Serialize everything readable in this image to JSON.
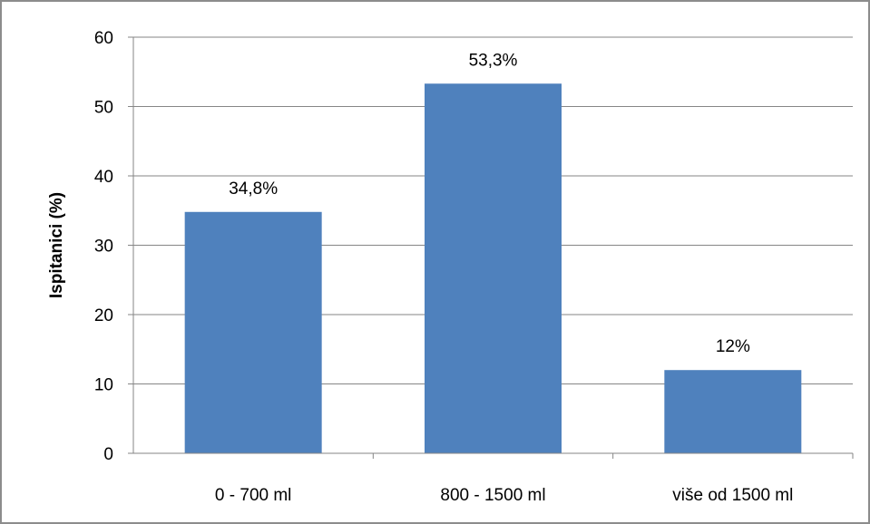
{
  "chart_data": {
    "type": "bar",
    "title": "",
    "xlabel": "",
    "ylabel": "Ispitanici (%)",
    "categories": [
      "0 - 700 ml",
      "800 - 1500 ml",
      "više od 1500 ml"
    ],
    "values": [
      34.8,
      53.3,
      12
    ],
    "data_labels": [
      "34,8%",
      "53,3%",
      "12%"
    ],
    "ylim": [
      0,
      60
    ],
    "yticks": [
      0,
      10,
      20,
      30,
      40,
      50,
      60
    ],
    "grid": true,
    "legend": "none",
    "bar_color": "#4f81bd",
    "grid_color": "#868686"
  }
}
